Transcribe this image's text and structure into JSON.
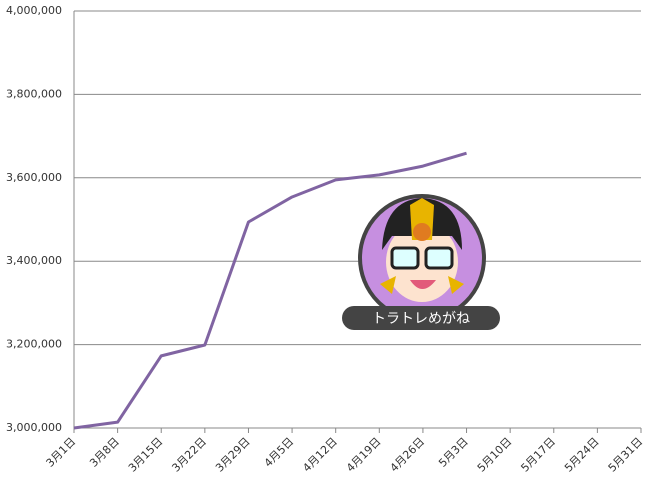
{
  "chart_data": {
    "type": "line",
    "categories": [
      "3月1日",
      "3月8日",
      "3月15日",
      "3月22日",
      "3月29日",
      "4月5日",
      "4月12日",
      "4月19日",
      "4月26日",
      "5月3日",
      "5月10日",
      "5月17日",
      "5月24日",
      "5月31日"
    ],
    "series": [
      {
        "color": "#8064a2",
        "values": [
          3000000,
          3014000,
          3173000,
          3199000,
          3494000,
          3554000,
          3595000,
          3607000,
          3628000,
          3659000,
          null,
          null,
          null,
          null
        ]
      }
    ],
    "ylim": [
      3000000,
      4000000
    ],
    "yticks": [
      {
        "value": 3000000,
        "label": "3,000,000"
      },
      {
        "value": 3200000,
        "label": "3,200,000"
      },
      {
        "value": 3400000,
        "label": "3,400,000"
      },
      {
        "value": 3600000,
        "label": "3,600,000"
      },
      {
        "value": 3800000,
        "label": "3,800,000"
      },
      {
        "value": 4000000,
        "label": "4,000,000"
      }
    ],
    "grid": true
  },
  "watermark": "トラトレめがね"
}
